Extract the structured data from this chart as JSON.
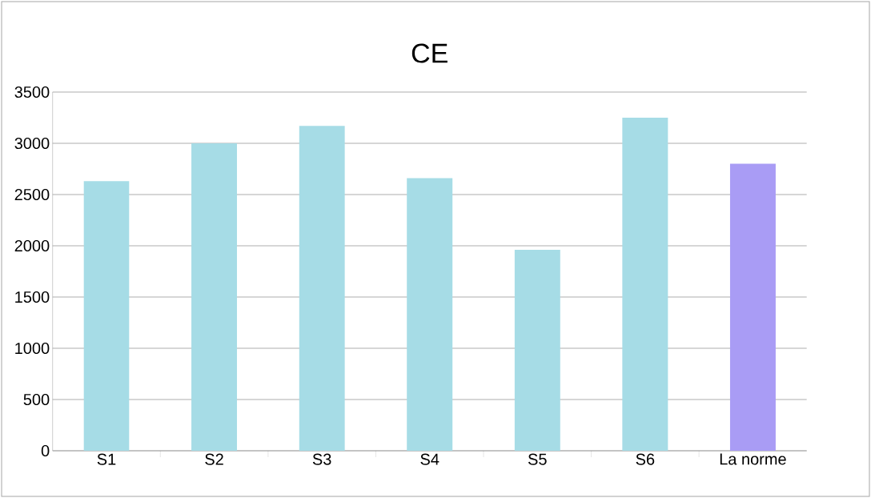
{
  "chart_data": {
    "type": "bar",
    "title": "CE",
    "categories": [
      "S1",
      "S2",
      "S3",
      "S4",
      "S5",
      "S6",
      "La norme"
    ],
    "values": [
      2630,
      3000,
      3170,
      2660,
      1960,
      3250,
      2800
    ],
    "colors": [
      "#a6dce6",
      "#a6dce6",
      "#a6dce6",
      "#a6dce6",
      "#a6dce6",
      "#a6dce6",
      "#a99cf5"
    ],
    "ylim": [
      0,
      3500
    ],
    "yticks": [
      0,
      500,
      1000,
      1500,
      2000,
      2500,
      3000,
      3500
    ],
    "grid": "y",
    "legend": false
  }
}
